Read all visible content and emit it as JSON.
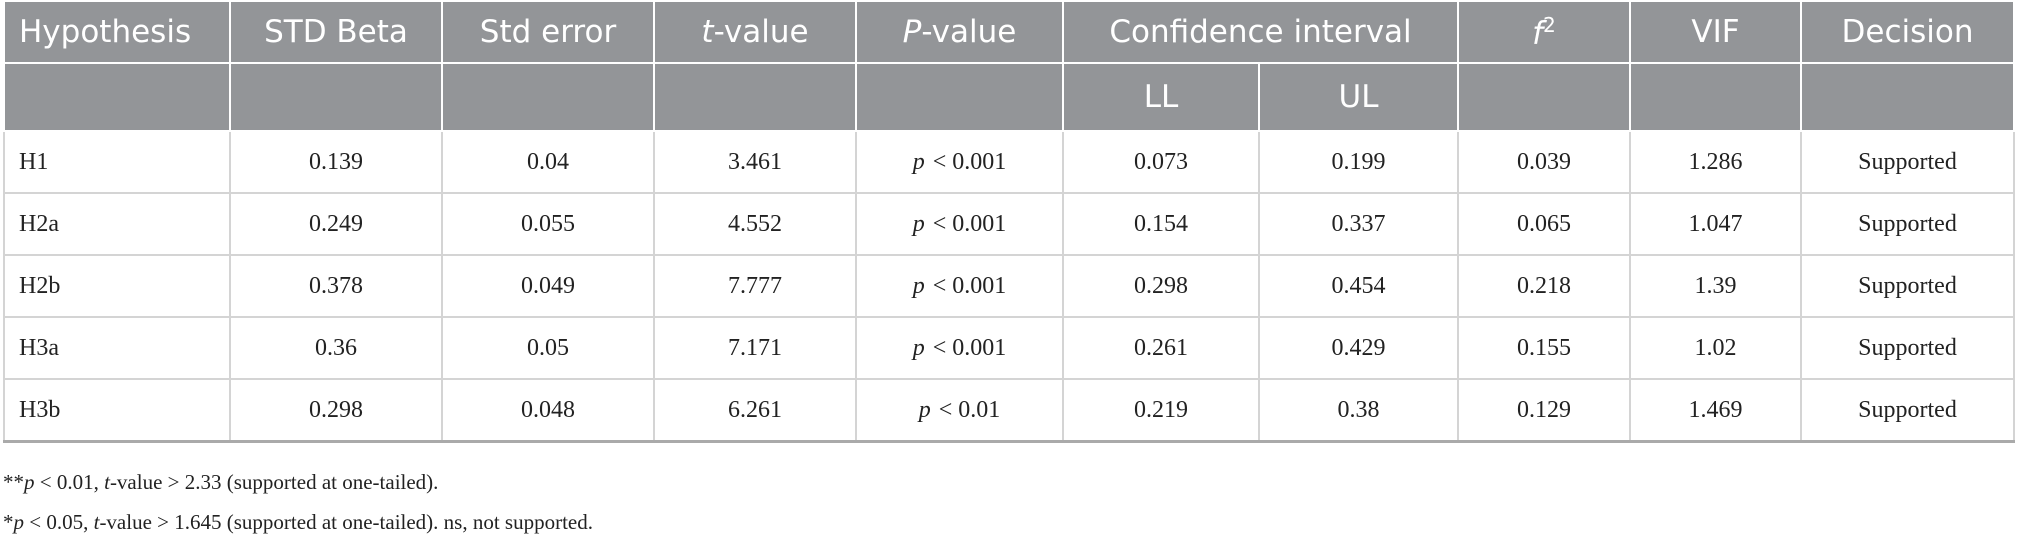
{
  "table": {
    "header": [
      [
        {
          "text": "Hypothesis"
        }
      ],
      [
        {
          "text": "STD Beta"
        }
      ],
      [
        {
          "text": "Std error"
        }
      ],
      [
        {
          "text": "t",
          "style": "italic"
        },
        {
          "text": "-value"
        }
      ],
      [
        {
          "text": "P",
          "style": "italic"
        },
        {
          "text": "-value"
        }
      ],
      [
        {
          "text": "Confidence interval"
        }
      ],
      [
        {
          "text": "f",
          "style": "italic"
        },
        {
          "text": "2",
          "style": "sup"
        }
      ],
      [
        {
          "text": "VIF"
        }
      ],
      [
        {
          "text": "Decision"
        }
      ]
    ],
    "subheader": [
      "LL",
      "UL"
    ],
    "rows": [
      [
        "H1",
        "0.139",
        "0.04",
        "3.461",
        [
          {
            "text": "p",
            "style": "italic"
          },
          {
            "text": "< 0.001"
          }
        ],
        "0.073",
        "0.199",
        "0.039",
        "1.286",
        "Supported"
      ],
      [
        "H2a",
        "0.249",
        "0.055",
        "4.552",
        [
          {
            "text": "p",
            "style": "italic"
          },
          {
            "text": "< 0.001"
          }
        ],
        "0.154",
        "0.337",
        "0.065",
        "1.047",
        "Supported"
      ],
      [
        "H2b",
        "0.378",
        "0.049",
        "7.777",
        [
          {
            "text": "p",
            "style": "italic"
          },
          {
            "text": "< 0.001"
          }
        ],
        "0.298",
        "0.454",
        "0.218",
        "1.39",
        "Supported"
      ],
      [
        "H3a",
        "0.36",
        "0.05",
        "7.171",
        [
          {
            "text": "p",
            "style": "italic"
          },
          {
            "text": "< 0.001"
          }
        ],
        "0.261",
        "0.429",
        "0.155",
        "1.02",
        "Supported"
      ],
      [
        "H3b",
        "0.298",
        "0.048",
        "6.261",
        [
          {
            "text": "p",
            "style": "italic"
          },
          {
            "text": "< 0.01"
          }
        ],
        "0.219",
        "0.38",
        "0.129",
        "1.469",
        "Supported"
      ]
    ]
  },
  "footnotes": [
    [
      {
        "text": "**"
      },
      {
        "text": "p",
        "style": "italic"
      },
      {
        "text": " < 0.01, "
      },
      {
        "text": "t",
        "style": "italic"
      },
      {
        "text": "-value > 2.33 (supported at one-tailed)."
      }
    ],
    [
      {
        "text": "*"
      },
      {
        "text": "p",
        "style": "italic"
      },
      {
        "text": " < 0.05, "
      },
      {
        "text": "t",
        "style": "italic"
      },
      {
        "text": "-value > 1.645 (supported at one-tailed). ns, not supported."
      }
    ]
  ]
}
